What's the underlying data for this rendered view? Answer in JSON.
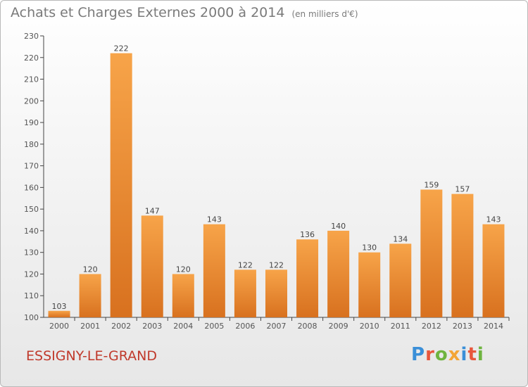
{
  "title": "Achats et Charges Externes 2000 à 2014",
  "unit_note": "(en milliers d'€)",
  "location": "ESSIGNY-LE-GRAND",
  "logo_text": "Proxiti",
  "colors": {
    "bar_top": "#f7a449",
    "bar_bottom": "#d8711f",
    "axis": "#444444",
    "location": "#c0392b",
    "logo": [
      "#3a8fd8",
      "#e8563c",
      "#6fb43f",
      "#f3a536",
      "#3a8fd8",
      "#e8563c",
      "#6fb43f"
    ]
  },
  "chart_data": {
    "type": "bar",
    "title": "Achats et Charges Externes 2000 à 2014",
    "subtitle": "(en milliers d'€)",
    "categories": [
      "2000",
      "2001",
      "2002",
      "2003",
      "2004",
      "2005",
      "2006",
      "2007",
      "2008",
      "2009",
      "2010",
      "2011",
      "2012",
      "2013",
      "2014"
    ],
    "values": [
      103,
      120,
      222,
      147,
      120,
      143,
      122,
      122,
      136,
      140,
      130,
      134,
      159,
      157,
      143
    ],
    "ylim": [
      100,
      230
    ],
    "yticks": [
      100,
      110,
      120,
      130,
      140,
      150,
      160,
      170,
      180,
      190,
      200,
      210,
      220,
      230
    ],
    "grid": false,
    "legend": "none",
    "xlabel": "",
    "ylabel": ""
  }
}
